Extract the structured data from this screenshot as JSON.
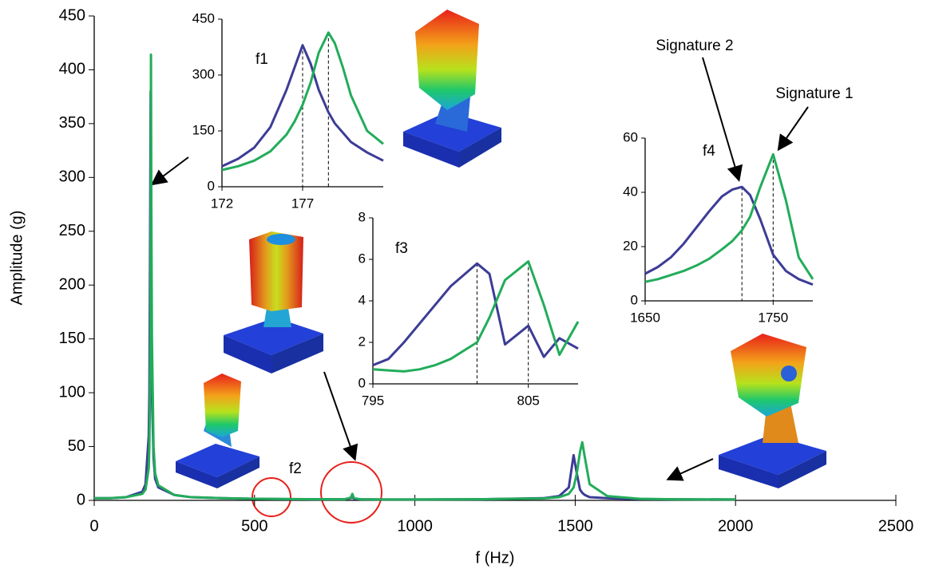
{
  "chart_data": [
    {
      "type": "line",
      "x_label": "f (Hz)",
      "y_label": "Amplitude (g)",
      "xlim": [
        0,
        2500
      ],
      "xticks": [
        0,
        500,
        1000,
        1500,
        2000,
        2500
      ],
      "ylim": [
        0,
        450
      ],
      "yticks": [
        0,
        50,
        100,
        150,
        200,
        250,
        300,
        350,
        400,
        450
      ],
      "annotations": [
        "f2"
      ],
      "x": [
        0,
        50,
        100,
        150,
        160,
        170,
        172,
        174,
        175,
        176,
        177,
        178,
        180,
        185,
        190,
        200,
        250,
        300,
        400,
        500,
        600,
        700,
        780,
        800,
        805,
        810,
        830,
        900,
        1000,
        1200,
        1400,
        1450,
        1480,
        1495,
        1505,
        1515,
        1522,
        1530,
        1545,
        1600,
        1700,
        1800,
        2000
      ],
      "series": [
        {
          "color": "#3c3c96",
          "values": [
            2,
            2,
            3,
            8,
            15,
            60,
            100,
            220,
            300,
            380,
            300,
            200,
            100,
            40,
            20,
            12,
            5,
            3,
            2,
            1.5,
            1.2,
            1,
            1,
            2,
            3,
            1.5,
            1,
            0.8,
            0.8,
            1,
            2,
            4,
            12,
            42,
            25,
            10,
            7,
            5,
            3,
            2,
            1.2,
            1,
            0.8
          ]
        },
        {
          "color": "#22ac5a",
          "values": [
            2,
            2,
            3,
            6,
            10,
            30,
            50,
            100,
            150,
            260,
            414,
            280,
            150,
            50,
            25,
            14,
            5,
            3,
            2,
            1.5,
            1.2,
            1,
            1,
            2.5,
            6,
            2,
            1,
            0.8,
            0.8,
            1,
            1.8,
            3,
            6,
            12,
            25,
            45,
            54,
            40,
            15,
            4,
            1.5,
            1,
            0.8
          ]
        }
      ]
    },
    {
      "type": "line",
      "annotations": [
        "f1"
      ],
      "xlim": [
        172,
        182
      ],
      "xticks": [
        172,
        177
      ],
      "ylim": [
        0,
        450
      ],
      "yticks": [
        0,
        150,
        300,
        450
      ],
      "x": [
        172,
        173,
        174,
        175,
        176,
        176.5,
        177,
        177.5,
        178,
        178.6,
        179,
        179.5,
        180,
        181,
        182
      ],
      "series": [
        {
          "color": "#3c3c96",
          "values": [
            55,
            75,
            105,
            160,
            260,
            320,
            380,
            330,
            260,
            200,
            170,
            145,
            120,
            92,
            70
          ]
        },
        {
          "color": "#22ac5a",
          "values": [
            45,
            55,
            70,
            95,
            140,
            175,
            220,
            280,
            360,
            414,
            385,
            320,
            245,
            150,
            115
          ]
        }
      ]
    },
    {
      "type": "line",
      "annotations": [
        "f3"
      ],
      "xlim": [
        795,
        808.2
      ],
      "xticks": [
        795,
        805
      ],
      "ylim": [
        0,
        8
      ],
      "yticks": [
        0,
        2,
        4,
        6,
        8
      ],
      "x": [
        795,
        796,
        797,
        798,
        799,
        800,
        801.7,
        802.5,
        803.5,
        805,
        806,
        807,
        808.2
      ],
      "series": [
        {
          "color": "#3c3c96",
          "values": [
            0.9,
            1.2,
            2,
            2.9,
            3.8,
            4.7,
            5.8,
            5.3,
            1.9,
            2.8,
            1.3,
            2.2,
            1.7
          ]
        },
        {
          "color": "#22ac5a",
          "values": [
            0.7,
            0.65,
            0.6,
            0.7,
            0.9,
            1.2,
            2.0,
            3.2,
            5.0,
            5.9,
            3.8,
            1.4,
            3.0
          ]
        }
      ]
    },
    {
      "type": "line",
      "annotations": [
        "f4",
        "Signature 2",
        "Signature 1"
      ],
      "xlim": [
        1650,
        1781
      ],
      "xticks": [
        1650,
        1750
      ],
      "ylim": [
        0,
        60
      ],
      "yticks": [
        0,
        20,
        40,
        60
      ],
      "x": [
        1650,
        1660,
        1670,
        1680,
        1690,
        1700,
        1710,
        1718,
        1725.6,
        1732,
        1740,
        1750,
        1760,
        1770,
        1781
      ],
      "series": [
        {
          "color": "#3c3c96",
          "values": [
            10,
            12.5,
            16,
            21,
            27,
            33,
            38.5,
            41,
            42,
            39,
            30,
            17,
            11,
            8,
            6
          ]
        },
        {
          "color": "#22ac5a",
          "values": [
            7,
            8,
            9.5,
            11,
            13,
            15.5,
            19,
            22,
            26,
            31,
            42,
            54,
            37,
            16,
            8
          ]
        }
      ]
    }
  ]
}
